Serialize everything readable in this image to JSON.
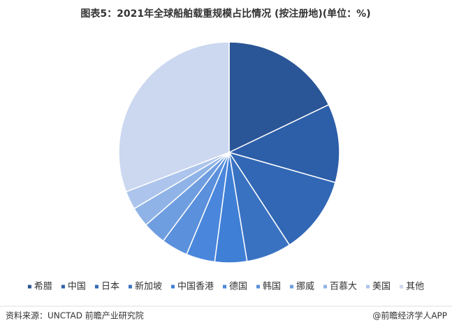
{
  "chart_data": {
    "type": "pie",
    "title": "图表5：2021年全球船舶载重规模占比情况 (按注册地)(单位：%)",
    "categories": [
      "希腊",
      "中国",
      "日本",
      "新加坡",
      "中国香港",
      "德国",
      "韩国",
      "挪威",
      "百慕大",
      "美国",
      "其他"
    ],
    "values": [
      17.9,
      11.5,
      11.4,
      6.6,
      4.7,
      4.2,
      3.9,
      3.4,
      2.9,
      2.7,
      30.8
    ],
    "colors": [
      "#2a5596",
      "#2d5ea8",
      "#3167b5",
      "#3a72c2",
      "#3f7fd6",
      "#4a87dc",
      "#5a90dc",
      "#6f9ee0",
      "#8fb3e6",
      "#adc5ec",
      "#ccd7f0"
    ],
    "legend": "bottom",
    "source": "资料来源：UNCTAD 前瞻产业研究院",
    "credit": "@前瞻经济学人APP"
  }
}
